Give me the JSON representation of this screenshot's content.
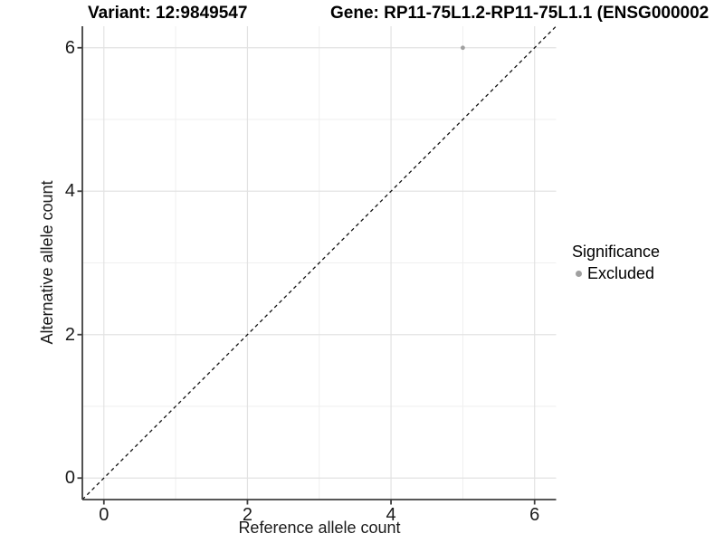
{
  "chart_data": {
    "type": "scatter",
    "title_left": "Variant: 12:9849547",
    "title_right": "Gene: RP11-75L1.2-RP11-75L1.1 (ENSG000002",
    "xlabel": "Reference allele count",
    "ylabel": "Alternative allele count",
    "xlim": [
      -0.3,
      6.3
    ],
    "ylim": [
      -0.3,
      6.3
    ],
    "x_ticks": [
      0,
      2,
      4,
      6
    ],
    "y_ticks": [
      0,
      2,
      4,
      6
    ],
    "x_minor_ticks": [
      1,
      3,
      5
    ],
    "y_minor_ticks": [
      1,
      3,
      5
    ],
    "grid": true,
    "series": [
      {
        "name": "Excluded",
        "color": "#a0a0a0",
        "points": [
          {
            "x": 5,
            "y": 6
          }
        ]
      }
    ],
    "identity_line": {
      "slope": 1,
      "intercept": 0,
      "linetype": "dashed",
      "color": "#111111"
    },
    "legend": {
      "position": "right",
      "title": "Significance",
      "items": [
        {
          "label": "Excluded",
          "color": "#a0a0a0"
        }
      ]
    },
    "style": {
      "grid_major_color": "#e2e2e2",
      "grid_minor_color": "#efefef",
      "axis_line_color": "#3f3f3f",
      "text_color": "#1a1a1a",
      "background": "#ffffff"
    }
  }
}
